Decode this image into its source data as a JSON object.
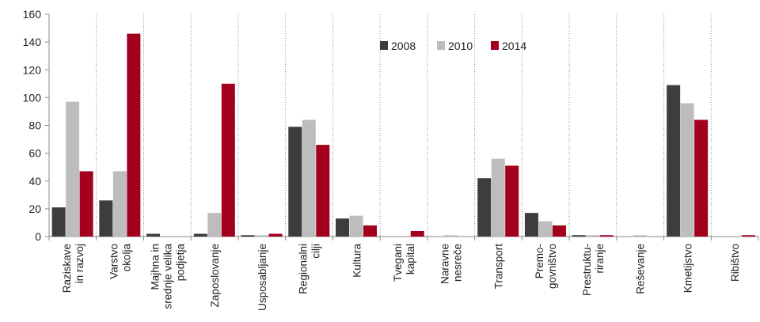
{
  "chart_data": {
    "type": "bar",
    "ylim": [
      0,
      160
    ],
    "yticks": [
      0,
      20,
      40,
      60,
      80,
      100,
      120,
      140,
      160
    ],
    "grid": "vertical dotted between categories",
    "legend_position": "top-center",
    "categories": [
      [
        "Raziskave",
        "in razvoj"
      ],
      [
        "Varstvo",
        "okolja"
      ],
      [
        "Majhna in",
        "srednje velika",
        "podjetja"
      ],
      [
        "Zaposlovanje"
      ],
      [
        "Usposabljanje"
      ],
      [
        "Regionalni",
        "cilji"
      ],
      [
        "Kultura"
      ],
      [
        "Tvegani",
        "kapital"
      ],
      [
        "Naravne",
        "nesreče"
      ],
      [
        "Transport"
      ],
      [
        "Premo-",
        "govništvo"
      ],
      [
        "Prestruktu-",
        "riranje"
      ],
      [
        "Reševanje"
      ],
      [
        "Kmetijstvo"
      ],
      [
        "Ribištvo"
      ]
    ],
    "series": [
      {
        "name": "2008",
        "color": "#3d3d3d",
        "values": [
          21,
          26,
          2,
          2,
          1,
          79,
          13,
          0,
          0,
          42,
          17,
          1,
          0,
          109,
          0
        ]
      },
      {
        "name": "2010",
        "color": "#bdbdbd",
        "values": [
          97,
          47,
          0,
          17,
          1,
          84,
          15,
          0,
          1,
          56,
          11,
          1,
          1,
          96,
          0
        ]
      },
      {
        "name": "2014",
        "color": "#a3001e",
        "values": [
          47,
          146,
          0,
          110,
          2,
          66,
          8,
          4,
          0,
          51,
          8,
          1,
          0,
          84,
          1
        ]
      }
    ]
  }
}
